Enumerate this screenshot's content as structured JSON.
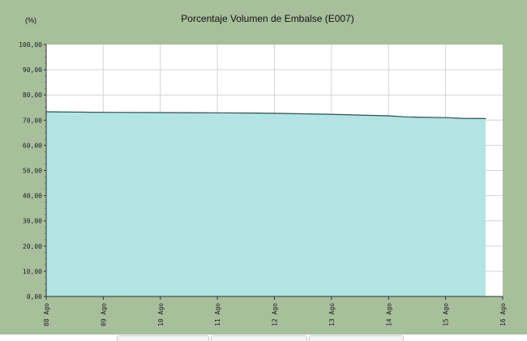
{
  "chart_data": {
    "type": "area",
    "title": "Porcentaje Volumen de Embalse  (E007)",
    "ylabel": "(%)",
    "xlabel": "",
    "ylim": [
      0,
      100
    ],
    "y_ticks": [
      "0,00",
      "10,00",
      "20,00",
      "30,00",
      "40,00",
      "50,00",
      "60,00",
      "70,00",
      "80,00",
      "90,00",
      "100,00"
    ],
    "x_ticks": [
      "08 Ago",
      "09 Ago",
      "10 Ago",
      "11 Ago",
      "12 Ago",
      "13 Ago",
      "14 Ago",
      "15 Ago",
      "16 Ago"
    ],
    "x_day_range": [
      8,
      16
    ],
    "grid": true,
    "series": [
      {
        "x_day": [
          8.0,
          9.0,
          10.0,
          11.0,
          11.7,
          12.0,
          12.5,
          13.0,
          13.5,
          14.0,
          14.3,
          14.5,
          15.0,
          15.3,
          15.7
        ],
        "values": [
          73.3,
          73.1,
          73.0,
          72.9,
          72.8,
          72.7,
          72.5,
          72.3,
          72.0,
          71.7,
          71.3,
          71.2,
          71.0,
          70.7,
          70.6
        ]
      }
    ],
    "colors": {
      "background": "#a7bf9b",
      "plot_area": "#ffffff",
      "fill": "#b2e4e4",
      "line": "#2f4f4f",
      "grid": "#d4d4d4"
    }
  }
}
